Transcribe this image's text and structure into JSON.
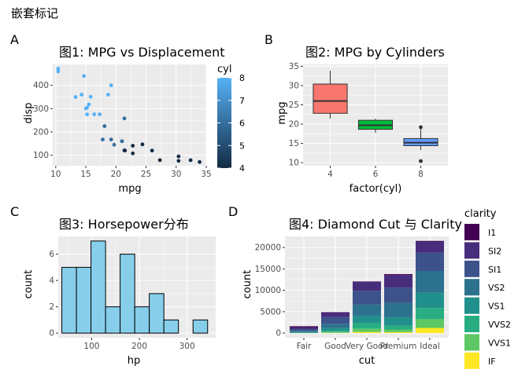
{
  "page_title": "嵌套标记",
  "chart_data": [
    {
      "tag": "A",
      "type": "scatter",
      "title": "图1: MPG vs Displacement",
      "xlabel": "mpg",
      "ylabel": "disp",
      "xlim": [
        9.5,
        35
      ],
      "ylim": [
        55,
        490
      ],
      "xticks": [
        10,
        15,
        20,
        25,
        30,
        35
      ],
      "yticks": [
        100,
        200,
        300,
        400
      ],
      "grid": true,
      "color_legend": {
        "title": "cyl",
        "range": [
          4,
          8
        ],
        "ticks": [
          4,
          5,
          6,
          7,
          8
        ],
        "low_color": "#132B43",
        "high_color": "#56B1F7",
        "placement": "right"
      },
      "points": [
        {
          "x": 21.0,
          "y": 160.0,
          "c": 6
        },
        {
          "x": 21.0,
          "y": 160.0,
          "c": 6
        },
        {
          "x": 22.8,
          "y": 108.0,
          "c": 4
        },
        {
          "x": 21.4,
          "y": 258.0,
          "c": 6
        },
        {
          "x": 18.7,
          "y": 360.0,
          "c": 8
        },
        {
          "x": 18.1,
          "y": 225.0,
          "c": 6
        },
        {
          "x": 14.3,
          "y": 360.0,
          "c": 8
        },
        {
          "x": 24.4,
          "y": 146.7,
          "c": 4
        },
        {
          "x": 22.8,
          "y": 140.8,
          "c": 4
        },
        {
          "x": 19.2,
          "y": 167.6,
          "c": 6
        },
        {
          "x": 17.8,
          "y": 167.6,
          "c": 6
        },
        {
          "x": 16.4,
          "y": 275.8,
          "c": 8
        },
        {
          "x": 17.3,
          "y": 275.8,
          "c": 8
        },
        {
          "x": 15.2,
          "y": 275.8,
          "c": 8
        },
        {
          "x": 10.4,
          "y": 472.0,
          "c": 8
        },
        {
          "x": 10.4,
          "y": 460.0,
          "c": 8
        },
        {
          "x": 14.7,
          "y": 440.0,
          "c": 8
        },
        {
          "x": 32.4,
          "y": 78.7,
          "c": 4
        },
        {
          "x": 30.4,
          "y": 75.7,
          "c": 4
        },
        {
          "x": 33.9,
          "y": 71.1,
          "c": 4
        },
        {
          "x": 21.5,
          "y": 120.1,
          "c": 4
        },
        {
          "x": 15.5,
          "y": 318.0,
          "c": 8
        },
        {
          "x": 15.2,
          "y": 304.0,
          "c": 8
        },
        {
          "x": 13.3,
          "y": 350.0,
          "c": 8
        },
        {
          "x": 19.2,
          "y": 400.0,
          "c": 8
        },
        {
          "x": 27.3,
          "y": 79.0,
          "c": 4
        },
        {
          "x": 26.0,
          "y": 120.3,
          "c": 4
        },
        {
          "x": 30.4,
          "y": 95.1,
          "c": 4
        },
        {
          "x": 15.8,
          "y": 351.0,
          "c": 8
        },
        {
          "x": 19.7,
          "y": 145.0,
          "c": 6
        },
        {
          "x": 15.0,
          "y": 301.0,
          "c": 8
        },
        {
          "x": 21.4,
          "y": 121.0,
          "c": 4
        }
      ]
    },
    {
      "tag": "B",
      "type": "box",
      "title": "图2: MPG by Cylinders",
      "xlabel": "factor(cyl)",
      "ylabel": "mpg",
      "ylim": [
        9.2,
        35.5
      ],
      "yticks": [
        10,
        15,
        20,
        25,
        30,
        35
      ],
      "grid": true,
      "boxes": [
        {
          "category": "4",
          "min": 21.4,
          "q1": 22.8,
          "median": 26.0,
          "q3": 30.4,
          "max": 33.9,
          "outliers": [],
          "color": "#F8766D"
        },
        {
          "category": "6",
          "min": 17.8,
          "q1": 18.65,
          "median": 19.7,
          "q3": 21.0,
          "max": 21.4,
          "outliers": [],
          "color": "#00BA38"
        },
        {
          "category": "8",
          "min": 13.3,
          "q1": 14.4,
          "median": 15.2,
          "q3": 16.25,
          "max": 18.7,
          "outliers": [
            10.4,
            10.4,
            19.2
          ],
          "color": "#619CFF"
        }
      ]
    },
    {
      "tag": "C",
      "type": "bar",
      "title": "图3: Horsepower分布",
      "xlabel": "hp",
      "ylabel": "count",
      "xlim": [
        30,
        360
      ],
      "ylim": [
        -0.35,
        7.35
      ],
      "xticks": [
        100,
        200,
        300
      ],
      "yticks": [
        0,
        2,
        4,
        6
      ],
      "grid": true,
      "fill": "#87CEEB",
      "bins": [
        {
          "start": 37.5,
          "end": 68.1,
          "count": 5
        },
        {
          "start": 68.1,
          "end": 98.6,
          "count": 5
        },
        {
          "start": 98.6,
          "end": 129.2,
          "count": 7
        },
        {
          "start": 129.2,
          "end": 159.7,
          "count": 2
        },
        {
          "start": 159.7,
          "end": 190.3,
          "count": 6
        },
        {
          "start": 190.3,
          "end": 220.8,
          "count": 2
        },
        {
          "start": 220.8,
          "end": 251.4,
          "count": 3
        },
        {
          "start": 251.4,
          "end": 281.9,
          "count": 1
        },
        {
          "start": 281.9,
          "end": 312.5,
          "count": 0
        },
        {
          "start": 312.5,
          "end": 343.1,
          "count": 1
        }
      ]
    },
    {
      "tag": "D",
      "type": "bar",
      "stacked": true,
      "title": "图4: Diamond Cut 与 Clarity",
      "xlabel": "cut",
      "ylabel": "count",
      "ylim": [
        -1080,
        22600
      ],
      "yticks": [
        0,
        5000,
        10000,
        15000,
        20000
      ],
      "grid": true,
      "categories": [
        "Fair",
        "Good",
        "Very Good",
        "Premium",
        "Ideal"
      ],
      "legend": {
        "title": "clarity",
        "placement": "right"
      },
      "series": [
        {
          "name": "I1",
          "color": "#440154",
          "values": [
            210,
            96,
            84,
            205,
            146
          ]
        },
        {
          "name": "SI2",
          "color": "#472D7B",
          "values": [
            466,
            1081,
            2100,
            2949,
            2598
          ]
        },
        {
          "name": "SI1",
          "color": "#3B528B",
          "values": [
            408,
            1560,
            3240,
            3575,
            4282
          ]
        },
        {
          "name": "VS2",
          "color": "#2C728E",
          "values": [
            261,
            978,
            2591,
            3357,
            5071
          ]
        },
        {
          "name": "VS1",
          "color": "#21908C",
          "values": [
            170,
            648,
            1775,
            1989,
            3589
          ]
        },
        {
          "name": "VVS2",
          "color": "#27AD81",
          "values": [
            69,
            286,
            1235,
            870,
            2606
          ]
        },
        {
          "name": "VVS1",
          "color": "#5DC863",
          "values": [
            17,
            186,
            789,
            616,
            2047
          ]
        },
        {
          "name": "IF",
          "color": "#FDE725",
          "values": [
            9,
            71,
            268,
            230,
            1212
          ]
        }
      ]
    }
  ]
}
